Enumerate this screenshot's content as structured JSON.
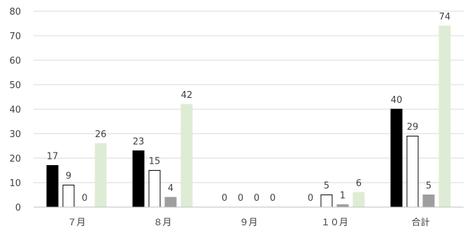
{
  "chart_data": {
    "type": "bar",
    "title": "",
    "xlabel": "",
    "ylabel": "",
    "ylim": [
      0,
      80
    ],
    "yticks": [
      0,
      10,
      20,
      30,
      40,
      50,
      60,
      70,
      80
    ],
    "grid": true,
    "legend": "none",
    "categories": [
      "７月",
      "８月",
      "９月",
      "１０月",
      "合計"
    ],
    "series": [
      {
        "values": [
          17,
          23,
          0,
          0,
          40
        ],
        "color": "#000000",
        "stroke": "#000000"
      },
      {
        "values": [
          9,
          15,
          0,
          5,
          29
        ],
        "color": "#ffffff",
        "stroke": "#000000"
      },
      {
        "values": [
          0,
          4,
          0,
          1,
          5
        ],
        "color": "#9e9e9e",
        "stroke": "#9e9e9e"
      },
      {
        "values": [
          26,
          42,
          0,
          6,
          74
        ],
        "color": "#dfecd5",
        "stroke": "#dfecd5"
      }
    ],
    "colors": {
      "gridline": "#d9d9d9",
      "axis": "#bfbfbf",
      "text": "#404040"
    }
  }
}
